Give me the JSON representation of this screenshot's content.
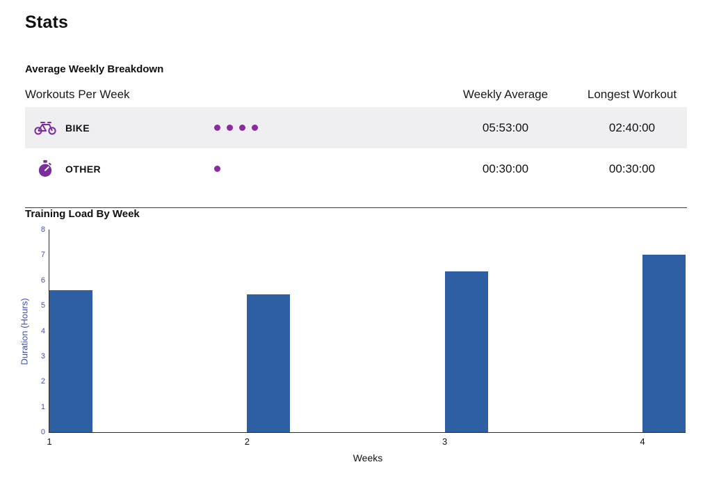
{
  "page": {
    "title": "Stats"
  },
  "breakdown": {
    "section_title": "Average Weekly Breakdown",
    "columns": {
      "workouts": "Workouts Per Week",
      "weekly_average": "Weekly Average",
      "longest_workout": "Longest Workout"
    },
    "rows": [
      {
        "sport": "BIKE",
        "icon": "bike-icon",
        "dot_count": 4,
        "weekly_average": "05:53:00",
        "longest_workout": "02:40:00"
      },
      {
        "sport": "OTHER",
        "icon": "stopwatch-icon",
        "dot_count": 1,
        "weekly_average": "00:30:00",
        "longest_workout": "00:30:00"
      }
    ]
  },
  "training_load": {
    "section_title": "Training Load By Week"
  },
  "chart_data": {
    "type": "bar",
    "title": "Training Load By Week",
    "categories": [
      "1",
      "2",
      "3",
      "4"
    ],
    "values": [
      5.6,
      5.45,
      6.35,
      7.0
    ],
    "xlabel": "Weeks",
    "ylabel": "Duration (Hours)",
    "ylim": [
      0,
      8
    ],
    "yticks": [
      0,
      1,
      2,
      3,
      4,
      5,
      6,
      7,
      8
    ],
    "bar_color": "#2e5fa3",
    "grid": false,
    "legend": "none"
  },
  "colors": {
    "accent_purple": "#7b2d9e",
    "dot_purple": "#8a2b9e",
    "row_alt_bg": "#efeff1",
    "bar_blue": "#2e5fa3",
    "axis_blue": "#3f51b5"
  }
}
